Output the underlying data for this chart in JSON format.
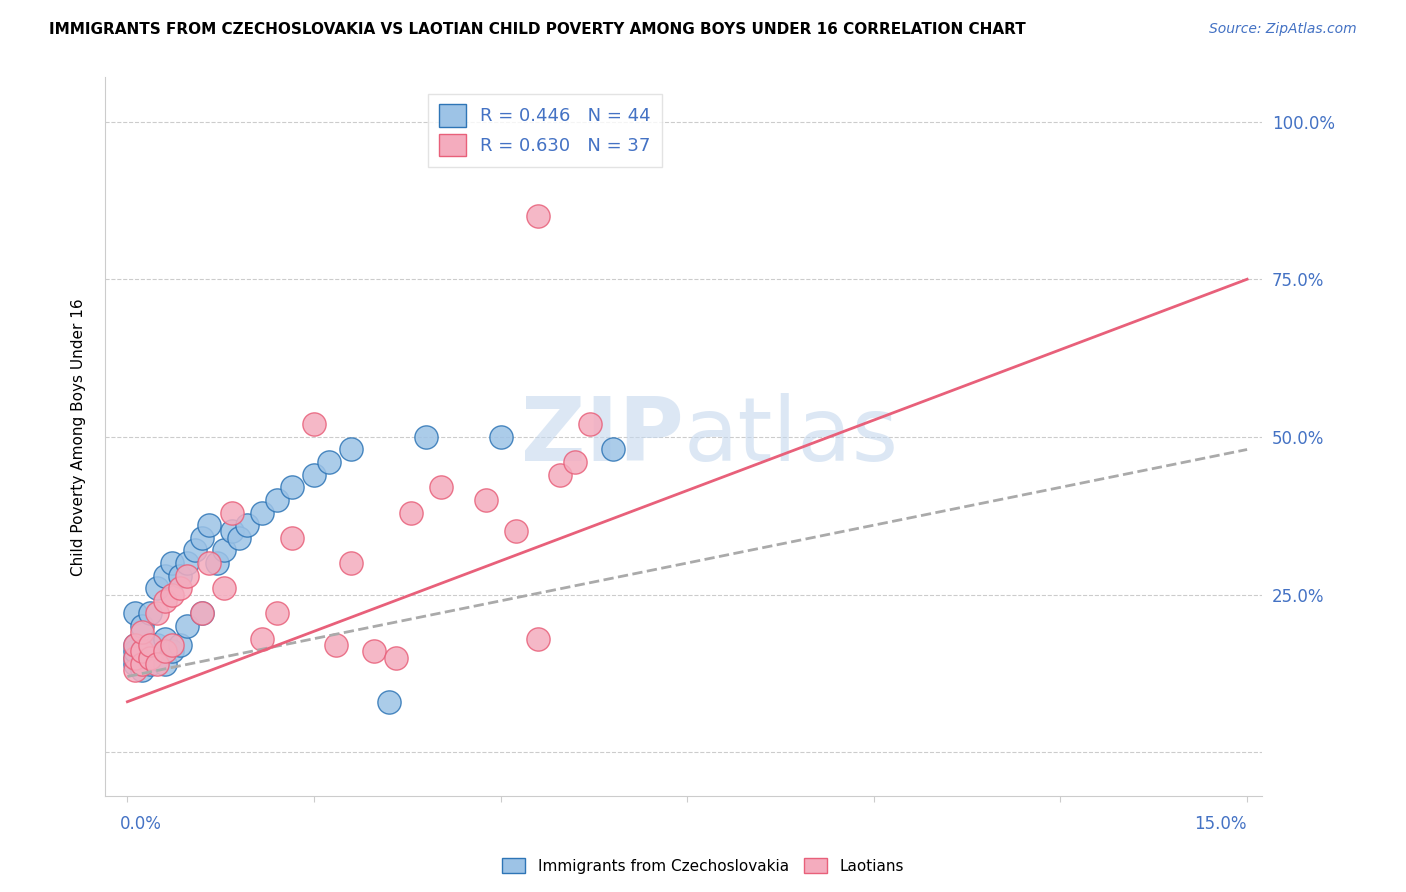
{
  "title": "IMMIGRANTS FROM CZECHOSLOVAKIA VS LAOTIAN CHILD POVERTY AMONG BOYS UNDER 16 CORRELATION CHART",
  "source": "Source: ZipAtlas.com",
  "ylabel": "Child Poverty Among Boys Under 16",
  "legend_blue_r": "R = 0.446",
  "legend_blue_n": "N = 44",
  "legend_pink_r": "R = 0.630",
  "legend_pink_n": "N = 37",
  "blue_color": "#9DC3E6",
  "pink_color": "#F4ACBE",
  "blue_line_color": "#2E75B6",
  "pink_line_color": "#E8607A",
  "gray_line_color": "#AAAAAA",
  "watermark": "ZIPatlas",
  "xlim": [
    0.0,
    0.15
  ],
  "ylim": [
    0.0,
    1.0
  ],
  "ytick_positions": [
    0.0,
    0.25,
    0.5,
    0.75,
    1.0
  ],
  "ytick_labels_right": [
    "",
    "25.0%",
    "50.0%",
    "75.0%",
    "100.0%"
  ],
  "xtick_label_left": "0.0%",
  "xtick_label_right": "15.0%",
  "blue_x": [
    0.001,
    0.001,
    0.001,
    0.001,
    0.001,
    0.002,
    0.002,
    0.002,
    0.002,
    0.003,
    0.003,
    0.003,
    0.003,
    0.004,
    0.004,
    0.004,
    0.005,
    0.005,
    0.005,
    0.006,
    0.006,
    0.007,
    0.007,
    0.008,
    0.008,
    0.009,
    0.01,
    0.01,
    0.011,
    0.012,
    0.013,
    0.014,
    0.015,
    0.016,
    0.018,
    0.02,
    0.022,
    0.025,
    0.027,
    0.03,
    0.035,
    0.04,
    0.05,
    0.065
  ],
  "blue_y": [
    0.14,
    0.15,
    0.16,
    0.17,
    0.22,
    0.13,
    0.14,
    0.16,
    0.2,
    0.14,
    0.15,
    0.16,
    0.22,
    0.15,
    0.17,
    0.26,
    0.14,
    0.18,
    0.28,
    0.16,
    0.3,
    0.17,
    0.28,
    0.2,
    0.3,
    0.32,
    0.22,
    0.34,
    0.36,
    0.3,
    0.32,
    0.35,
    0.34,
    0.36,
    0.38,
    0.4,
    0.42,
    0.44,
    0.46,
    0.48,
    0.08,
    0.5,
    0.5,
    0.48
  ],
  "pink_x": [
    0.001,
    0.001,
    0.001,
    0.002,
    0.002,
    0.002,
    0.003,
    0.003,
    0.004,
    0.004,
    0.005,
    0.005,
    0.006,
    0.006,
    0.007,
    0.008,
    0.01,
    0.011,
    0.013,
    0.014,
    0.018,
    0.02,
    0.022,
    0.025,
    0.028,
    0.03,
    0.033,
    0.036,
    0.038,
    0.042,
    0.048,
    0.052,
    0.055,
    0.058,
    0.06,
    0.062,
    0.055
  ],
  "pink_y": [
    0.13,
    0.15,
    0.17,
    0.14,
    0.16,
    0.19,
    0.15,
    0.17,
    0.14,
    0.22,
    0.16,
    0.24,
    0.17,
    0.25,
    0.26,
    0.28,
    0.22,
    0.3,
    0.26,
    0.38,
    0.18,
    0.22,
    0.34,
    0.52,
    0.17,
    0.3,
    0.16,
    0.15,
    0.38,
    0.42,
    0.4,
    0.35,
    0.85,
    0.44,
    0.46,
    0.52,
    0.18
  ],
  "blue_line_x": [
    0.0,
    0.15
  ],
  "blue_line_y": [
    0.12,
    0.48
  ],
  "pink_line_x": [
    0.0,
    0.15
  ],
  "pink_line_y": [
    0.08,
    0.75
  ]
}
